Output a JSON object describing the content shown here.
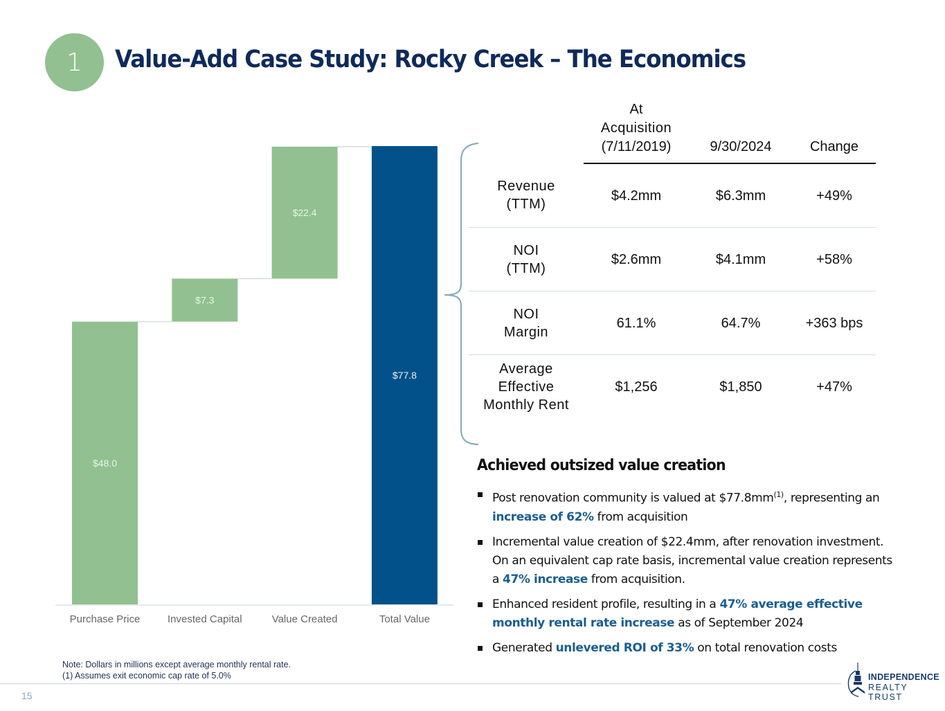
{
  "slide": {
    "section_number": "1",
    "title": "Value-Add Case Study: Rocky Creek – The Economics",
    "page_number": "15"
  },
  "colors": {
    "green": "#92c090",
    "navy": "#03518a",
    "title": "#0e2a5a",
    "highlight": "#1b5e91",
    "brace": "#8aabc2"
  },
  "chart_data": {
    "type": "waterfall",
    "title": "",
    "xlabel": "",
    "ylabel": "",
    "ylim": [
      0,
      77.8
    ],
    "grid": false,
    "categories": [
      "Purchase Price",
      "Invested Capital",
      "Value Created",
      "Total Value"
    ],
    "values": [
      48.0,
      7.3,
      22.4,
      77.8
    ],
    "bases": [
      0,
      48.0,
      55.3,
      0
    ],
    "labels": [
      "$48.0",
      "$7.3",
      "$22.4",
      "$77.8"
    ],
    "kinds": [
      "increase",
      "increase",
      "increase",
      "total"
    ],
    "units": "$ millions"
  },
  "notes": {
    "line1": "Note: Dollars in millions except average monthly rental rate.",
    "line2": "(1) Assumes exit economic cap rate of 5.0%"
  },
  "table": {
    "headers": [
      "",
      "At Acquisition (7/11/2019)",
      "9/30/2024",
      "Change"
    ],
    "header_lines": [
      [],
      [
        "At",
        "Acquisition",
        "(7/11/2019)"
      ],
      [
        "9/30/2024"
      ],
      [
        "Change"
      ]
    ],
    "rows": [
      {
        "label_lines": [
          "Revenue",
          "(TTM)"
        ],
        "acquisition": "$4.2mm",
        "current": "$6.3mm",
        "change": "+49%"
      },
      {
        "label_lines": [
          "NOI",
          "(TTM)"
        ],
        "acquisition": "$2.6mm",
        "current": "$4.1mm",
        "change": "+58%"
      },
      {
        "label_lines": [
          "NOI",
          "Margin"
        ],
        "acquisition": "61.1%",
        "current": "64.7%",
        "change": "+363 bps"
      },
      {
        "label_lines": [
          "Average",
          "Effective",
          "Monthly Rent"
        ],
        "acquisition": "$1,256",
        "current": "$1,850",
        "change": "+47%"
      }
    ]
  },
  "highlights": {
    "title": "Achieved outsized value creation",
    "bullets": [
      {
        "parts": [
          {
            "t": "Post renovation community is valued at $77.8mm"
          },
          {
            "t": "(1)",
            "sup": true
          },
          {
            "t": ", representing an "
          },
          {
            "t": "increase of 62%",
            "hl": true
          },
          {
            "t": " from acquisition"
          }
        ]
      },
      {
        "parts": [
          {
            "t": "Incremental value creation of $22.4mm, after renovation investment. On an equivalent cap rate basis, incremental value creation represents a "
          },
          {
            "t": "47% increase",
            "hl": true
          },
          {
            "t": " from acquisition."
          }
        ]
      },
      {
        "parts": [
          {
            "t": "Enhanced resident profile, resulting in a "
          },
          {
            "t": "47% average effective monthly rental rate increase",
            "hl": true
          },
          {
            "t": " as of September 2024"
          }
        ]
      },
      {
        "parts": [
          {
            "t": "Generated "
          },
          {
            "t": "unlevered ROI of 33%",
            "hl": true
          },
          {
            "t": " on total renovation costs"
          }
        ]
      }
    ]
  },
  "logo": {
    "line1": "INDEPENDENCE",
    "line2": "REALTY TRUST"
  }
}
